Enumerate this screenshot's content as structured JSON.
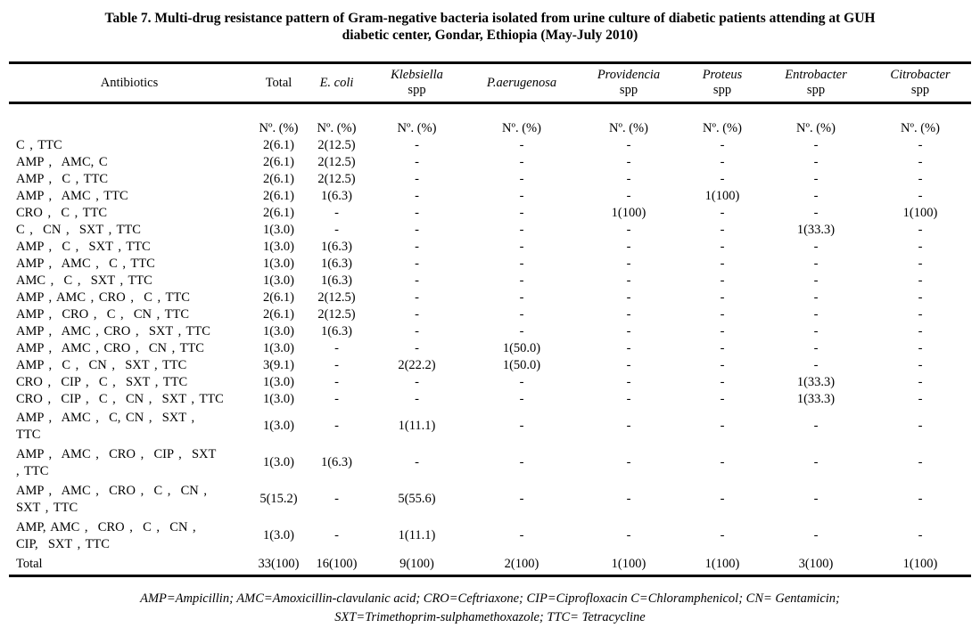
{
  "title": {
    "line1": "Table 7. Multi-drug resistance pattern of Gram-negative bacteria isolated from urine culture of diabetic patients attending at GUH",
    "line2": "diabetic center, Gondar, Ethiopia (May-July 2010)"
  },
  "table": {
    "units_label": "Nº. (%)",
    "columns": [
      {
        "label": "Antibiotics",
        "sub": "",
        "italic": false
      },
      {
        "label": "Total",
        "sub": "",
        "italic": false
      },
      {
        "label": "E. coli",
        "sub": "",
        "italic": true
      },
      {
        "label": "Klebsiella",
        "sub": "spp",
        "italic": true
      },
      {
        "label": "P.aerugenosa",
        "sub": "",
        "italic": true
      },
      {
        "label": "Providencia",
        "sub": "spp",
        "italic": true
      },
      {
        "label": "Proteus",
        "sub": "spp",
        "italic": true
      },
      {
        "label": "Entrobacter",
        "sub": "spp",
        "italic": true
      },
      {
        "label": "Citrobacter",
        "sub": "spp",
        "italic": true
      }
    ],
    "rows": [
      {
        "antibiotic": "C , TTC",
        "values": [
          "2(6.1)",
          "2(12.5)",
          "-",
          "-",
          "-",
          "-",
          "-",
          "-"
        ]
      },
      {
        "antibiotic": "AMP ,  AMC, C",
        "values": [
          "2(6.1)",
          "2(12.5)",
          "-",
          "-",
          "-",
          "-",
          "-",
          "-"
        ]
      },
      {
        "antibiotic": "AMP ,  C , TTC",
        "values": [
          "2(6.1)",
          "2(12.5)",
          "-",
          "-",
          "-",
          "-",
          "-",
          "-"
        ]
      },
      {
        "antibiotic": "AMP ,  AMC , TTC",
        "values": [
          "2(6.1)",
          "1(6.3)",
          "-",
          "-",
          "-",
          "1(100)",
          "-",
          "-"
        ]
      },
      {
        "antibiotic": "CRO ,  C , TTC",
        "values": [
          "2(6.1)",
          "-",
          "-",
          "-",
          "1(100)",
          "-",
          "-",
          "1(100)"
        ]
      },
      {
        "antibiotic": "C ,  CN ,  SXT , TTC",
        "values": [
          "1(3.0)",
          "-",
          "-",
          "-",
          "-",
          "-",
          "1(33.3)",
          "-"
        ]
      },
      {
        "antibiotic": "AMP ,  C ,  SXT , TTC",
        "values": [
          "1(3.0)",
          "1(6.3)",
          "-",
          "-",
          "-",
          "-",
          "-",
          "-"
        ]
      },
      {
        "antibiotic": "AMP ,  AMC ,  C , TTC",
        "values": [
          "1(3.0)",
          "1(6.3)",
          "-",
          "-",
          "-",
          "-",
          "-",
          "-"
        ]
      },
      {
        "antibiotic": "AMC ,  C ,  SXT , TTC",
        "values": [
          "1(3.0)",
          "1(6.3)",
          "-",
          "-",
          "-",
          "-",
          "-",
          "-"
        ]
      },
      {
        "antibiotic": "AMP , AMC , CRO ,  C , TTC",
        "values": [
          "2(6.1)",
          "2(12.5)",
          "-",
          "-",
          "-",
          "-",
          "-",
          "-"
        ]
      },
      {
        "antibiotic": "AMP ,  CRO ,  C ,  CN , TTC",
        "values": [
          "2(6.1)",
          "2(12.5)",
          "-",
          "-",
          "-",
          "-",
          "-",
          "-"
        ]
      },
      {
        "antibiotic": "AMP ,  AMC , CRO ,  SXT , TTC",
        "values": [
          "1(3.0)",
          "1(6.3)",
          "-",
          "-",
          "-",
          "-",
          "-",
          "-"
        ]
      },
      {
        "antibiotic": "AMP ,  AMC , CRO ,  CN , TTC",
        "values": [
          "1(3.0)",
          "-",
          "-",
          "1(50.0)",
          "-",
          "-",
          "-",
          "-"
        ]
      },
      {
        "antibiotic": "AMP ,  C ,  CN ,  SXT , TTC",
        "values": [
          "3(9.1)",
          "-",
          "2(22.2)",
          "1(50.0)",
          "-",
          "-",
          "-",
          "-"
        ]
      },
      {
        "antibiotic": "CRO ,  CIP ,  C ,  SXT , TTC",
        "values": [
          "1(3.0)",
          "-",
          "-",
          "-",
          "-",
          "-",
          "1(33.3)",
          "-"
        ]
      },
      {
        "antibiotic": "CRO ,  CIP ,  C ,  CN ,  SXT , TTC",
        "values": [
          "1(3.0)",
          "-",
          "-",
          "-",
          "-",
          "-",
          "1(33.3)",
          "-"
        ]
      },
      {
        "antibiotic": "AMP ,  AMC ,  C, CN ,  SXT ,\nTTC",
        "values": [
          "1(3.0)",
          "-",
          "1(11.1)",
          "-",
          "-",
          "-",
          "-",
          "-"
        ]
      },
      {
        "antibiotic": "AMP ,  AMC ,  CRO ,  CIP ,  SXT\n, TTC",
        "values": [
          "1(3.0)",
          "1(6.3)",
          "-",
          "-",
          "-",
          "-",
          "-",
          "-"
        ]
      },
      {
        "antibiotic": "AMP ,  AMC ,  CRO ,  C ,  CN ,\nSXT , TTC",
        "values": [
          "5(15.2)",
          "-",
          "5(55.6)",
          "-",
          "-",
          "-",
          "-",
          "-"
        ]
      },
      {
        "antibiotic": "AMP, AMC ,  CRO ,  C ,  CN ,\nCIP,  SXT , TTC",
        "values": [
          "1(3.0)",
          "-",
          "1(11.1)",
          "-",
          "-",
          "-",
          "-",
          "-"
        ]
      },
      {
        "antibiotic": "Total",
        "values": [
          "33(100)",
          "16(100)",
          "9(100)",
          "2(100)",
          "1(100)",
          "1(100)",
          "3(100)",
          "1(100)"
        ]
      }
    ]
  },
  "footnote": {
    "line1": "AMP=Ampicillin; AMC=Amoxicillin-clavulanic acid; CRO=Ceftriaxone; CIP=Ciprofloxacin    C=Chloramphenicol; CN= Gentamicin;",
    "line2": "SXT=Trimethoprim-sulphamethoxazole; TTC= Tetracycline"
  },
  "colors": {
    "text": "#000000",
    "background": "#ffffff",
    "rule": "#000000"
  }
}
